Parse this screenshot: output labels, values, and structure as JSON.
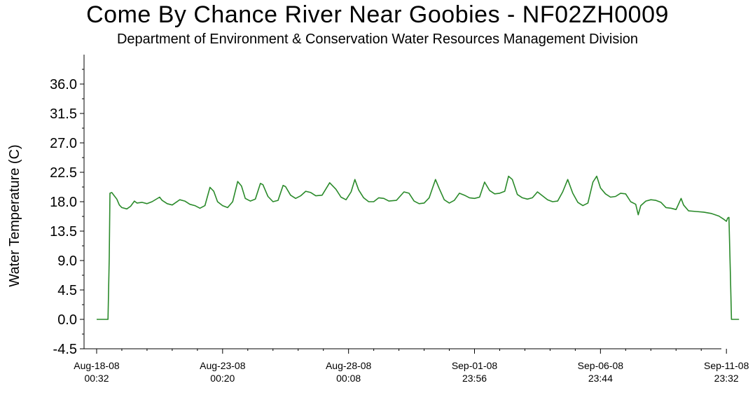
{
  "chart_data": {
    "type": "line",
    "title": "Come By Chance River Near Goobies - NF02ZH0009",
    "subtitle": "Department of Environment & Conservation Water Resources Management Division",
    "xlabel": "",
    "ylabel": "Water Temperature (C)",
    "ylim": [
      -4.5,
      40.5
    ],
    "xlim": [
      -0.5,
      24.8
    ],
    "yticks": [
      "-4.5",
      "0.0",
      "4.5",
      "9.0",
      "13.5",
      "18.0",
      "22.5",
      "27.0",
      "31.5",
      "36.0"
    ],
    "xticks": [
      {
        "x": 0,
        "line1": "Aug-18-08",
        "line2": "00:32"
      },
      {
        "x": 5,
        "line1": "Aug-23-08",
        "line2": "00:20"
      },
      {
        "x": 10,
        "line1": "Aug-28-08",
        "line2": "00:08"
      },
      {
        "x": 15,
        "line1": "Sep-01-08",
        "line2": "23:56"
      },
      {
        "x": 20,
        "line1": "Sep-06-08",
        "line2": "23:44"
      },
      {
        "x": 25,
        "line1": "Sep-11-08",
        "line2": "23:32"
      }
    ],
    "grid": false,
    "colors": {
      "line": "#2a8a2a",
      "axis": "#000000"
    },
    "series": [
      {
        "values": [
          [
            0.0,
            0.0
          ],
          [
            0.45,
            0.0
          ],
          [
            0.5,
            9.5
          ],
          [
            0.53,
            19.3
          ],
          [
            0.6,
            19.4
          ],
          [
            0.7,
            18.9
          ],
          [
            0.8,
            18.4
          ],
          [
            0.9,
            17.5
          ],
          [
            1.0,
            17.1
          ],
          [
            1.2,
            16.9
          ],
          [
            1.35,
            17.3
          ],
          [
            1.5,
            18.1
          ],
          [
            1.6,
            17.8
          ],
          [
            1.8,
            17.9
          ],
          [
            2.0,
            17.7
          ],
          [
            2.2,
            18.0
          ],
          [
            2.5,
            18.7
          ],
          [
            2.6,
            18.2
          ],
          [
            2.8,
            17.7
          ],
          [
            3.0,
            17.5
          ],
          [
            3.3,
            18.3
          ],
          [
            3.5,
            18.1
          ],
          [
            3.7,
            17.6
          ],
          [
            3.9,
            17.4
          ],
          [
            4.1,
            17.0
          ],
          [
            4.3,
            17.4
          ],
          [
            4.5,
            20.2
          ],
          [
            4.65,
            19.6
          ],
          [
            4.8,
            18.0
          ],
          [
            5.0,
            17.4
          ],
          [
            5.2,
            17.1
          ],
          [
            5.4,
            18.0
          ],
          [
            5.6,
            21.1
          ],
          [
            5.75,
            20.4
          ],
          [
            5.9,
            18.5
          ],
          [
            6.1,
            18.1
          ],
          [
            6.3,
            18.4
          ],
          [
            6.5,
            20.8
          ],
          [
            6.6,
            20.6
          ],
          [
            6.8,
            18.8
          ],
          [
            7.0,
            18.0
          ],
          [
            7.2,
            18.2
          ],
          [
            7.4,
            20.5
          ],
          [
            7.5,
            20.3
          ],
          [
            7.7,
            19.0
          ],
          [
            7.9,
            18.5
          ],
          [
            8.1,
            18.9
          ],
          [
            8.3,
            19.6
          ],
          [
            8.5,
            19.4
          ],
          [
            8.7,
            18.9
          ],
          [
            8.95,
            19.0
          ],
          [
            9.25,
            20.9
          ],
          [
            9.5,
            19.9
          ],
          [
            9.7,
            18.7
          ],
          [
            9.9,
            18.3
          ],
          [
            10.1,
            19.5
          ],
          [
            10.25,
            21.4
          ],
          [
            10.4,
            19.8
          ],
          [
            10.6,
            18.6
          ],
          [
            10.8,
            18.0
          ],
          [
            11.0,
            18.0
          ],
          [
            11.2,
            18.6
          ],
          [
            11.4,
            18.5
          ],
          [
            11.6,
            18.1
          ],
          [
            11.9,
            18.2
          ],
          [
            12.2,
            19.5
          ],
          [
            12.4,
            19.3
          ],
          [
            12.6,
            18.1
          ],
          [
            12.8,
            17.7
          ],
          [
            13.0,
            17.8
          ],
          [
            13.2,
            18.6
          ],
          [
            13.45,
            21.4
          ],
          [
            13.6,
            20.0
          ],
          [
            13.8,
            18.3
          ],
          [
            14.0,
            17.8
          ],
          [
            14.2,
            18.2
          ],
          [
            14.4,
            19.3
          ],
          [
            14.6,
            19.0
          ],
          [
            14.8,
            18.6
          ],
          [
            15.0,
            18.5
          ],
          [
            15.2,
            18.7
          ],
          [
            15.4,
            21.0
          ],
          [
            15.6,
            19.7
          ],
          [
            15.8,
            19.2
          ],
          [
            16.0,
            19.3
          ],
          [
            16.2,
            19.6
          ],
          [
            16.35,
            21.9
          ],
          [
            16.5,
            21.4
          ],
          [
            16.7,
            19.1
          ],
          [
            16.9,
            18.6
          ],
          [
            17.1,
            18.4
          ],
          [
            17.3,
            18.6
          ],
          [
            17.5,
            19.5
          ],
          [
            17.7,
            18.9
          ],
          [
            17.9,
            18.3
          ],
          [
            18.1,
            18.0
          ],
          [
            18.3,
            18.1
          ],
          [
            18.5,
            19.5
          ],
          [
            18.7,
            21.4
          ],
          [
            18.9,
            19.3
          ],
          [
            19.1,
            17.9
          ],
          [
            19.3,
            17.4
          ],
          [
            19.5,
            17.8
          ],
          [
            19.7,
            21.0
          ],
          [
            19.85,
            21.9
          ],
          [
            20.0,
            20.1
          ],
          [
            20.2,
            19.2
          ],
          [
            20.4,
            18.7
          ],
          [
            20.6,
            18.8
          ],
          [
            20.8,
            19.3
          ],
          [
            21.0,
            19.2
          ],
          [
            21.2,
            18.0
          ],
          [
            21.4,
            17.6
          ],
          [
            21.5,
            16.0
          ],
          [
            21.6,
            17.4
          ],
          [
            21.8,
            18.1
          ],
          [
            22.0,
            18.3
          ],
          [
            22.2,
            18.2
          ],
          [
            22.4,
            17.9
          ],
          [
            22.6,
            17.1
          ],
          [
            22.8,
            17.0
          ],
          [
            23.0,
            16.8
          ],
          [
            23.2,
            18.5
          ],
          [
            23.3,
            17.5
          ],
          [
            23.5,
            16.6
          ],
          [
            23.8,
            16.5
          ],
          [
            24.1,
            16.4
          ],
          [
            24.4,
            16.2
          ],
          [
            24.7,
            15.8
          ],
          [
            24.9,
            15.3
          ],
          [
            25.0,
            15.0
          ],
          [
            25.05,
            15.5
          ],
          [
            25.1,
            15.6
          ],
          [
            25.15,
            8.0
          ],
          [
            25.2,
            0.0
          ],
          [
            25.5,
            0.0
          ]
        ]
      }
    ]
  }
}
